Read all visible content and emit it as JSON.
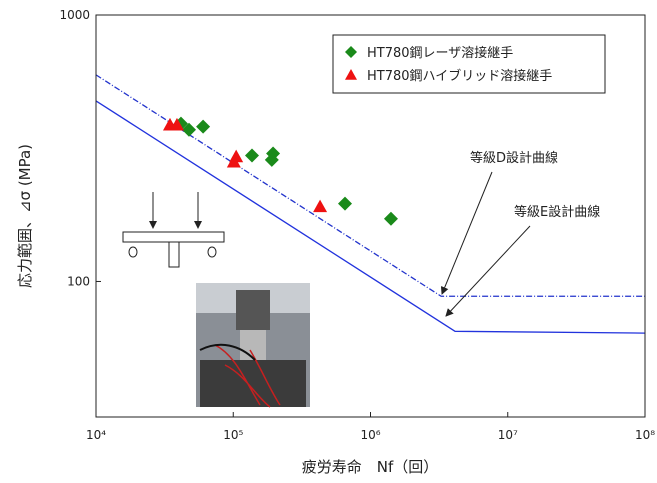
{
  "chart_data": {
    "type": "scatter",
    "xlabel": "疲労寿命　Nf（回）",
    "ylabel": "応力範囲、⊿σ (MPa)",
    "xscale": "log",
    "yscale": "log",
    "xlim": [
      10000,
      100000000
    ],
    "ylim": [
      31,
      1000
    ],
    "xticks": [
      {
        "value": 10000,
        "label": "10⁴"
      },
      {
        "value": 100000,
        "label": "10⁵"
      },
      {
        "value": 1000000,
        "label": "10⁶"
      },
      {
        "value": 10000000,
        "label": "10⁷"
      },
      {
        "value": 100000000,
        "label": "10⁸"
      }
    ],
    "yticks": [
      100,
      1000
    ],
    "legend": "upper right",
    "series": [
      {
        "name": "HT780鋼レーザ溶接継手",
        "color": "#1a8a1a",
        "marker": "diamond",
        "x": [
          41600,
          47600,
          60300,
          137000,
          195000,
          191000,
          652000,
          1410000
        ],
        "values": [
          391,
          371,
          381,
          297,
          302,
          286,
          196,
          172
        ]
      },
      {
        "name": "HT780鋼ハイブリッド溶接継手",
        "color": "#ee1111",
        "marker": "triangle",
        "x": [
          34600,
          38900,
          105000,
          101000,
          429000
        ],
        "values": [
          387,
          387,
          294,
          281,
          191
        ]
      }
    ],
    "curves": [
      {
        "label": "等級D設計曲線",
        "color": "#2233cc",
        "linestyle": "dashdot",
        "x": [
          10000,
          3270000,
          100000000
        ],
        "values": [
          596,
          88,
          88
        ]
      },
      {
        "label": "等級E設計曲線",
        "color": "#2233dd",
        "linestyle": "solid",
        "x": [
          10000,
          4130000,
          100000000
        ],
        "values": [
          476,
          65,
          64
        ]
      }
    ]
  }
}
